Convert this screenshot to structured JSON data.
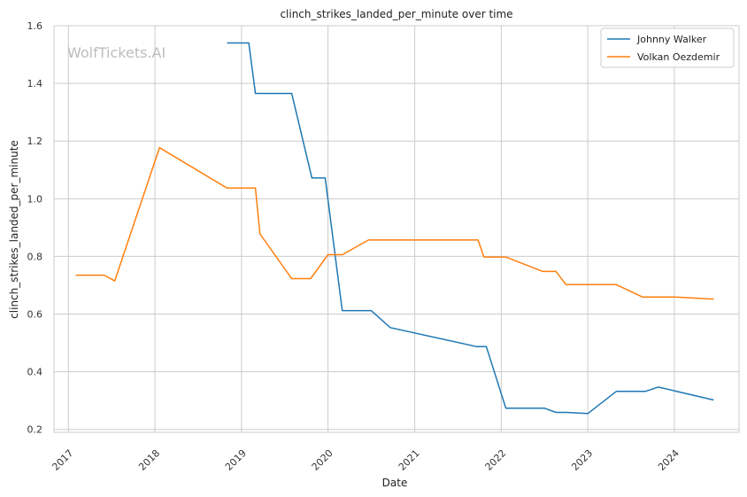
{
  "chart_data": {
    "type": "line",
    "title": "clinch_strikes_landed_per_minute over time",
    "xlabel": "Date",
    "ylabel": "clinch_strikes_landed_per_minute",
    "watermark": "WolfTickets.AI",
    "xlim": [
      "2016-11-01",
      "2024-09-30"
    ],
    "ylim": [
      0.19,
      1.6
    ],
    "x_ticks": [
      "2017",
      "2018",
      "2019",
      "2020",
      "2021",
      "2022",
      "2023",
      "2024"
    ],
    "y_ticks": [
      "0.2",
      "0.4",
      "0.6",
      "0.8",
      "1.0",
      "1.2",
      "1.4",
      "1.6"
    ],
    "grid": true,
    "legend_position": "top-right",
    "series": [
      {
        "name": "Johnny Walker",
        "color": "#1f77b4",
        "points": [
          [
            "2018-11-01",
            1.54
          ],
          [
            "2019-02-01",
            1.54
          ],
          [
            "2019-03-01",
            1.365
          ],
          [
            "2019-08-01",
            1.365
          ],
          [
            "2019-10-25",
            1.072
          ],
          [
            "2019-12-20",
            1.072
          ],
          [
            "2020-03-01",
            0.612
          ],
          [
            "2020-07-01",
            0.612
          ],
          [
            "2020-09-20",
            0.553
          ],
          [
            "2021-09-20",
            0.487
          ],
          [
            "2021-10-30",
            0.487
          ],
          [
            "2022-01-20",
            0.274
          ],
          [
            "2022-07-01",
            0.274
          ],
          [
            "2022-08-20",
            0.259
          ],
          [
            "2022-10-01",
            0.259
          ],
          [
            "2023-01-01",
            0.255
          ],
          [
            "2023-05-01",
            0.332
          ],
          [
            "2023-09-01",
            0.332
          ],
          [
            "2023-10-25",
            0.347
          ],
          [
            "2024-06-15",
            0.302
          ]
        ]
      },
      {
        "name": "Volkan Oezdemir",
        "color": "#ff7f0e",
        "points": [
          [
            "2017-02-01",
            0.735
          ],
          [
            "2017-06-01",
            0.735
          ],
          [
            "2017-07-15",
            0.715
          ],
          [
            "2018-01-20",
            1.177
          ],
          [
            "2018-11-01",
            1.037
          ],
          [
            "2019-03-01",
            1.037
          ],
          [
            "2019-03-20",
            0.878
          ],
          [
            "2019-08-01",
            0.723
          ],
          [
            "2019-10-20",
            0.723
          ],
          [
            "2020-01-01",
            0.806
          ],
          [
            "2020-03-01",
            0.806
          ],
          [
            "2020-06-20",
            0.857
          ],
          [
            "2021-09-25",
            0.857
          ],
          [
            "2021-10-20",
            0.798
          ],
          [
            "2022-01-20",
            0.798
          ],
          [
            "2022-06-25",
            0.748
          ],
          [
            "2022-08-20",
            0.748
          ],
          [
            "2022-10-01",
            0.702
          ],
          [
            "2023-05-01",
            0.702
          ],
          [
            "2023-08-20",
            0.659
          ],
          [
            "2024-01-01",
            0.659
          ],
          [
            "2024-06-15",
            0.652
          ]
        ]
      }
    ]
  }
}
